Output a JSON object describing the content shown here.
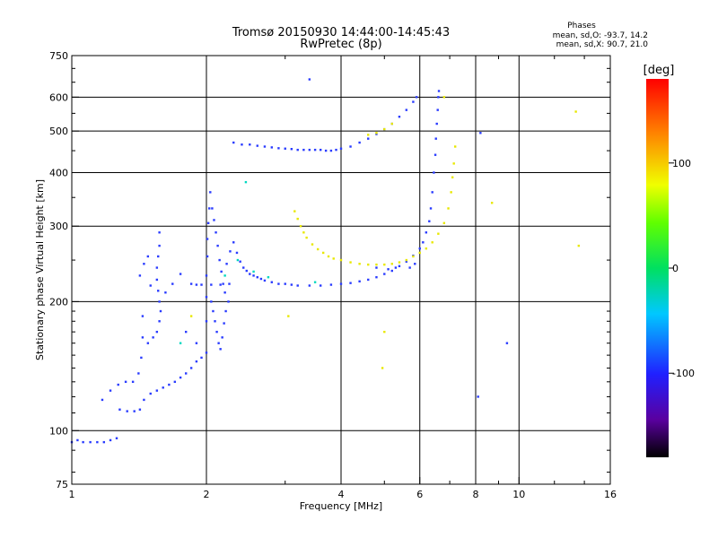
{
  "chart_data": {
    "type": "scatter",
    "title": "Tromsø 20150930 14:44:00-14:45:43",
    "subtitle": "RwPretec (8p)",
    "xlabel": "Frequency [MHz]",
    "ylabel": "Stationary phase Virtual Height [km]",
    "xscale": "log",
    "yscale": "log",
    "xlim": [
      1,
      16
    ],
    "ylim": [
      75,
      750
    ],
    "x_ticks": [
      1,
      2,
      4,
      6,
      8,
      10,
      16
    ],
    "x_tick_labels": [
      "1",
      "2",
      "4",
      "6",
      "8",
      "10",
      "16"
    ],
    "x_grid": [
      2,
      4,
      6,
      8,
      10
    ],
    "y_ticks": [
      75,
      100,
      200,
      300,
      400,
      500,
      600,
      750
    ],
    "y_tick_labels": [
      "75",
      "100",
      "200",
      "300",
      "400",
      "500",
      "600",
      "750"
    ],
    "y_grid": [
      100,
      200,
      300,
      400,
      500,
      600
    ],
    "grid": true,
    "stats": {
      "heading": "Phases",
      "line_o": "mean, sd,O: -93.7, 14.2",
      "line_x": "mean, sd,X:  90.7, 21.0"
    },
    "colorbar": {
      "label": "[deg]",
      "range": [
        -180,
        180
      ],
      "ticks": [
        100,
        0,
        -100
      ],
      "tick_labels": [
        "100",
        "0",
        "-100"
      ]
    },
    "series": [
      {
        "mode": "O",
        "phase": -95,
        "color": "#2a3cff",
        "points": [
          [
            1.0,
            94
          ],
          [
            1.03,
            95
          ],
          [
            1.06,
            94
          ],
          [
            1.1,
            94
          ],
          [
            1.14,
            94
          ],
          [
            1.18,
            94
          ],
          [
            1.22,
            95
          ],
          [
            1.26,
            96
          ],
          [
            1.17,
            118
          ],
          [
            1.22,
            124
          ],
          [
            1.27,
            128
          ],
          [
            1.32,
            130
          ],
          [
            1.37,
            130
          ],
          [
            1.41,
            136
          ],
          [
            1.43,
            148
          ],
          [
            1.44,
            165
          ],
          [
            1.44,
            185
          ],
          [
            1.28,
            112
          ],
          [
            1.33,
            111
          ],
          [
            1.38,
            111
          ],
          [
            1.42,
            112
          ],
          [
            1.45,
            118
          ],
          [
            1.5,
            122
          ],
          [
            1.55,
            124
          ],
          [
            1.6,
            126
          ],
          [
            1.65,
            128
          ],
          [
            1.7,
            130
          ],
          [
            1.75,
            133
          ],
          [
            1.8,
            136
          ],
          [
            1.85,
            140
          ],
          [
            1.9,
            145
          ],
          [
            1.95,
            148
          ],
          [
            2.0,
            152
          ],
          [
            1.48,
            160
          ],
          [
            1.52,
            165
          ],
          [
            1.55,
            170
          ],
          [
            1.57,
            180
          ],
          [
            1.58,
            190
          ],
          [
            1.57,
            200
          ],
          [
            1.56,
            212
          ],
          [
            1.55,
            225
          ],
          [
            1.55,
            240
          ],
          [
            1.56,
            255
          ],
          [
            1.57,
            270
          ],
          [
            1.57,
            290
          ],
          [
            1.62,
            210
          ],
          [
            1.68,
            220
          ],
          [
            1.75,
            232
          ],
          [
            1.8,
            170
          ],
          [
            1.9,
            160
          ],
          [
            1.42,
            230
          ],
          [
            1.45,
            245
          ],
          [
            1.48,
            255
          ],
          [
            1.5,
            218
          ],
          [
            2.0,
            180
          ],
          [
            2.0,
            205
          ],
          [
            2.0,
            230
          ],
          [
            2.01,
            255
          ],
          [
            2.01,
            280
          ],
          [
            2.02,
            305
          ],
          [
            2.03,
            330
          ],
          [
            2.04,
            360
          ],
          [
            2.06,
            330
          ],
          [
            2.08,
            310
          ],
          [
            2.1,
            290
          ],
          [
            2.12,
            270
          ],
          [
            2.14,
            250
          ],
          [
            2.16,
            235
          ],
          [
            2.18,
            220
          ],
          [
            2.2,
            210
          ],
          [
            2.05,
            200
          ],
          [
            2.07,
            190
          ],
          [
            2.09,
            180
          ],
          [
            2.11,
            170
          ],
          [
            2.13,
            160
          ],
          [
            2.15,
            155
          ],
          [
            2.17,
            165
          ],
          [
            2.19,
            178
          ],
          [
            2.21,
            190
          ],
          [
            2.24,
            200
          ],
          [
            2.22,
            245
          ],
          [
            2.26,
            262
          ],
          [
            2.3,
            275
          ],
          [
            2.34,
            260
          ],
          [
            2.38,
            248
          ],
          [
            2.42,
            240
          ],
          [
            2.46,
            236
          ],
          [
            2.5,
            232
          ],
          [
            2.55,
            230
          ],
          [
            2.6,
            228
          ],
          [
            2.65,
            226
          ],
          [
            2.7,
            224
          ],
          [
            2.8,
            222
          ],
          [
            2.9,
            220
          ],
          [
            3.0,
            220
          ],
          [
            3.1,
            219
          ],
          [
            3.2,
            218
          ],
          [
            3.4,
            218
          ],
          [
            3.6,
            218
          ],
          [
            3.8,
            219
          ],
          [
            4.0,
            220
          ],
          [
            4.2,
            221
          ],
          [
            4.4,
            223
          ],
          [
            4.6,
            225
          ],
          [
            4.8,
            228
          ],
          [
            5.0,
            232
          ],
          [
            5.2,
            236
          ],
          [
            5.4,
            242
          ],
          [
            5.6,
            248
          ],
          [
            5.8,
            256
          ],
          [
            6.0,
            266
          ],
          [
            6.1,
            275
          ],
          [
            6.2,
            290
          ],
          [
            6.3,
            308
          ],
          [
            6.35,
            330
          ],
          [
            6.4,
            360
          ],
          [
            6.45,
            400
          ],
          [
            6.5,
            440
          ],
          [
            6.52,
            480
          ],
          [
            6.55,
            520
          ],
          [
            6.58,
            560
          ],
          [
            6.6,
            600
          ],
          [
            6.62,
            620
          ],
          [
            1.85,
            220
          ],
          [
            1.9,
            219
          ],
          [
            1.95,
            219
          ],
          [
            2.05,
            219
          ],
          [
            2.15,
            219
          ],
          [
            2.25,
            220
          ],
          [
            2.3,
            470
          ],
          [
            2.4,
            465
          ],
          [
            2.5,
            465
          ],
          [
            2.6,
            462
          ],
          [
            2.7,
            460
          ],
          [
            2.8,
            458
          ],
          [
            2.9,
            456
          ],
          [
            3.0,
            455
          ],
          [
            3.1,
            454
          ],
          [
            3.2,
            452
          ],
          [
            3.3,
            452
          ],
          [
            3.4,
            452
          ],
          [
            3.5,
            452
          ],
          [
            3.6,
            452
          ],
          [
            3.7,
            450
          ],
          [
            3.8,
            450
          ],
          [
            3.9,
            452
          ],
          [
            4.0,
            455
          ],
          [
            4.2,
            460
          ],
          [
            4.4,
            470
          ],
          [
            4.6,
            480
          ],
          [
            4.8,
            492
          ],
          [
            5.0,
            505
          ],
          [
            5.2,
            520
          ],
          [
            5.4,
            540
          ],
          [
            5.6,
            560
          ],
          [
            5.8,
            585
          ],
          [
            5.9,
            600
          ],
          [
            3.4,
            660
          ],
          [
            5.7,
            240
          ],
          [
            5.85,
            245
          ],
          [
            4.8,
            240
          ],
          [
            5.1,
            238
          ],
          [
            5.3,
            240
          ],
          [
            8.1,
            120
          ],
          [
            9.4,
            160
          ],
          [
            8.2,
            495
          ]
        ]
      },
      {
        "mode": "X",
        "phase": 90,
        "color": "#e8e800",
        "points": [
          [
            3.15,
            325
          ],
          [
            3.2,
            312
          ],
          [
            3.25,
            300
          ],
          [
            3.3,
            290
          ],
          [
            3.35,
            282
          ],
          [
            3.45,
            272
          ],
          [
            3.55,
            265
          ],
          [
            3.65,
            260
          ],
          [
            3.75,
            255
          ],
          [
            3.85,
            252
          ],
          [
            4.0,
            250
          ],
          [
            4.2,
            247
          ],
          [
            4.4,
            245
          ],
          [
            4.6,
            244
          ],
          [
            4.8,
            244
          ],
          [
            5.0,
            244
          ],
          [
            5.2,
            245
          ],
          [
            5.4,
            247
          ],
          [
            5.6,
            250
          ],
          [
            5.8,
            255
          ],
          [
            6.0,
            260
          ],
          [
            6.2,
            266
          ],
          [
            6.4,
            275
          ],
          [
            6.6,
            288
          ],
          [
            6.8,
            305
          ],
          [
            6.95,
            330
          ],
          [
            7.05,
            360
          ],
          [
            7.1,
            390
          ],
          [
            7.15,
            420
          ],
          [
            7.2,
            460
          ],
          [
            4.6,
            490
          ],
          [
            4.8,
            495
          ],
          [
            5.0,
            505
          ],
          [
            5.2,
            520
          ],
          [
            6.8,
            600
          ],
          [
            1.85,
            185
          ],
          [
            3.05,
            185
          ],
          [
            5.0,
            170
          ],
          [
            4.95,
            140
          ],
          [
            13.4,
            555
          ],
          [
            13.6,
            270
          ],
          [
            8.7,
            340
          ]
        ]
      },
      {
        "mode": "other",
        "phase": 0,
        "color": "#00d8c0",
        "points": [
          [
            2.2,
            230
          ],
          [
            2.35,
            250
          ],
          [
            2.55,
            235
          ],
          [
            2.75,
            228
          ],
          [
            3.5,
            222
          ],
          [
            1.75,
            160
          ],
          [
            2.45,
            380
          ]
        ]
      }
    ]
  }
}
